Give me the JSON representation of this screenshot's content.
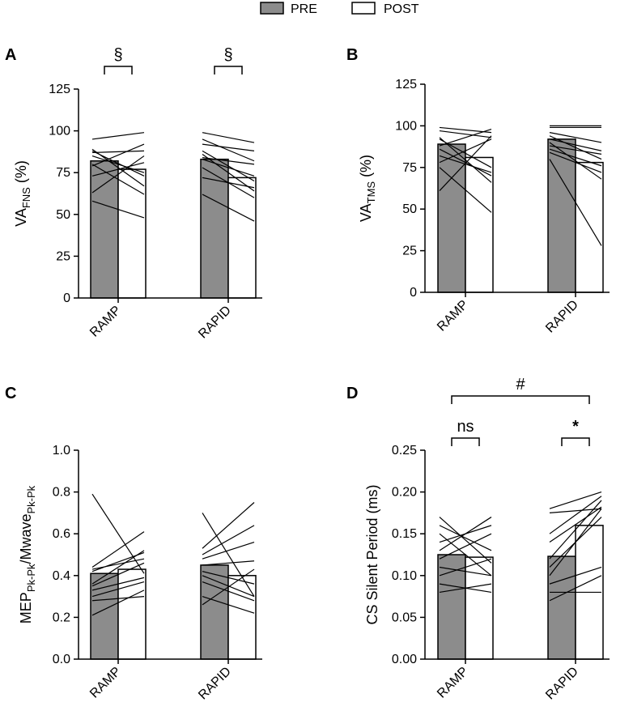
{
  "legend": {
    "pre_label": "PRE",
    "post_label": "POST",
    "pre_color": "#8c8c8c",
    "post_color": "#ffffff"
  },
  "chart_data": [
    {
      "panel": "A",
      "type": "bar",
      "ylabel": "VA",
      "ylabel_sub": "FNS",
      "ylabel_suffix": " (%)",
      "categories": [
        "RAMP",
        "RAPID"
      ],
      "series": [
        {
          "name": "PRE",
          "values": [
            82,
            83
          ]
        },
        {
          "name": "POST",
          "values": [
            77,
            72
          ]
        }
      ],
      "ylim": [
        0,
        125
      ],
      "yticks": [
        0,
        25,
        50,
        75,
        100,
        125
      ],
      "ytick_labels": [
        "0",
        "25",
        "50",
        "75",
        "100",
        "125"
      ],
      "subjects": [
        [
          [
            95,
            99
          ],
          [
            89,
            67
          ],
          [
            80,
            62
          ],
          [
            85,
            75
          ],
          [
            79,
            92
          ],
          [
            63,
            85
          ],
          [
            58,
            48
          ],
          [
            87,
            88
          ],
          [
            73,
            81
          ],
          [
            88,
            73
          ]
        ],
        [
          [
            99,
            93
          ],
          [
            92,
            88
          ],
          [
            95,
            82
          ],
          [
            84,
            80
          ],
          [
            78,
            60
          ],
          [
            88,
            70
          ],
          [
            62,
            46
          ],
          [
            72,
            66
          ],
          [
            83,
            73
          ],
          [
            86,
            64
          ]
        ]
      ],
      "annotations": [
        {
          "text": "§",
          "from": 0,
          "to": 0
        },
        {
          "text": "§",
          "from": 1,
          "to": 1
        }
      ]
    },
    {
      "panel": "B",
      "type": "bar",
      "ylabel": "VA",
      "ylabel_sub": "TMS",
      "ylabel_suffix": " (%)",
      "categories": [
        "RAMP",
        "RAPID"
      ],
      "series": [
        {
          "name": "PRE",
          "values": [
            89,
            92
          ]
        },
        {
          "name": "POST",
          "values": [
            81,
            78
          ]
        }
      ],
      "ylim": [
        0,
        125
      ],
      "yticks": [
        0,
        25,
        50,
        75,
        100,
        125
      ],
      "ytick_labels": [
        "0",
        "25",
        "50",
        "75",
        "100",
        "125"
      ],
      "subjects": [
        [
          [
            99,
            96
          ],
          [
            97,
            93
          ],
          [
            93,
            66
          ],
          [
            86,
            70
          ],
          [
            78,
            92
          ],
          [
            61,
            94
          ],
          [
            75,
            48
          ],
          [
            88,
            98
          ],
          [
            82,
            72
          ],
          [
            92,
            75
          ]
        ],
        [
          [
            100,
            100
          ],
          [
            99,
            99
          ],
          [
            96,
            90
          ],
          [
            94,
            80
          ],
          [
            92,
            85
          ],
          [
            88,
            83
          ],
          [
            84,
            72
          ],
          [
            80,
            28
          ],
          [
            86,
            76
          ],
          [
            90,
            68
          ]
        ]
      ],
      "annotations": []
    },
    {
      "panel": "C",
      "type": "bar",
      "ylabel": "MEP",
      "ylabel_sub": "Pk-Pk",
      "ylabel_mid": "/Mwave",
      "ylabel_sub2": "Pk-Pk",
      "ylabel_suffix": "",
      "categories": [
        "RAMP",
        "RAPID"
      ],
      "series": [
        {
          "name": "PRE",
          "values": [
            0.41,
            0.45
          ]
        },
        {
          "name": "POST",
          "values": [
            0.43,
            0.4
          ]
        }
      ],
      "ylim": [
        0,
        1.0
      ],
      "yticks": [
        0,
        0.2,
        0.4,
        0.6,
        0.8,
        1.0
      ],
      "ytick_labels": [
        "0.0",
        "0.2",
        "0.4",
        "0.6",
        "0.8",
        "1.0"
      ],
      "subjects": [
        [
          [
            0.79,
            0.41
          ],
          [
            0.44,
            0.61
          ],
          [
            0.43,
            0.48
          ],
          [
            0.42,
            0.51
          ],
          [
            0.36,
            0.52
          ],
          [
            0.35,
            0.46
          ],
          [
            0.33,
            0.39
          ],
          [
            0.3,
            0.37
          ],
          [
            0.21,
            0.33
          ],
          [
            0.28,
            0.3
          ]
        ],
        [
          [
            0.7,
            0.3
          ],
          [
            0.53,
            0.75
          ],
          [
            0.5,
            0.64
          ],
          [
            0.48,
            0.56
          ],
          [
            0.45,
            0.47
          ],
          [
            0.42,
            0.36
          ],
          [
            0.4,
            0.3
          ],
          [
            0.37,
            0.28
          ],
          [
            0.3,
            0.22
          ],
          [
            0.26,
            0.43
          ]
        ]
      ],
      "annotations": []
    },
    {
      "panel": "D",
      "type": "bar",
      "ylabel": "CS Silent Period (ms)",
      "ylabel_sub": "",
      "ylabel_suffix": "",
      "categories": [
        "RAMP",
        "RAPID"
      ],
      "series": [
        {
          "name": "PRE",
          "values": [
            0.125,
            0.123
          ]
        },
        {
          "name": "POST",
          "values": [
            0.122,
            0.16
          ]
        }
      ],
      "ylim": [
        0,
        0.25
      ],
      "yticks": [
        0,
        0.05,
        0.1,
        0.15,
        0.2,
        0.25
      ],
      "ytick_labels": [
        "0.00",
        "0.05",
        "0.10",
        "0.15",
        "0.20",
        "0.25"
      ],
      "subjects": [
        [
          [
            0.17,
            0.115
          ],
          [
            0.16,
            0.13
          ],
          [
            0.15,
            0.1
          ],
          [
            0.14,
            0.16
          ],
          [
            0.13,
            0.17
          ],
          [
            0.12,
            0.15
          ],
          [
            0.11,
            0.1
          ],
          [
            0.1,
            0.12
          ],
          [
            0.09,
            0.08
          ],
          [
            0.08,
            0.09
          ]
        ],
        [
          [
            0.18,
            0.2
          ],
          [
            0.175,
            0.18
          ],
          [
            0.15,
            0.195
          ],
          [
            0.14,
            0.182
          ],
          [
            0.12,
            0.19
          ],
          [
            0.11,
            0.17
          ],
          [
            0.1,
            0.18
          ],
          [
            0.09,
            0.11
          ],
          [
            0.08,
            0.08
          ],
          [
            0.07,
            0.1
          ]
        ]
      ],
      "annotations": [
        {
          "text": "ns",
          "from": 0,
          "to": 0
        },
        {
          "text": "*",
          "from": 1,
          "to": 1
        },
        {
          "text": "#",
          "from": 0,
          "to": 1
        }
      ]
    }
  ]
}
